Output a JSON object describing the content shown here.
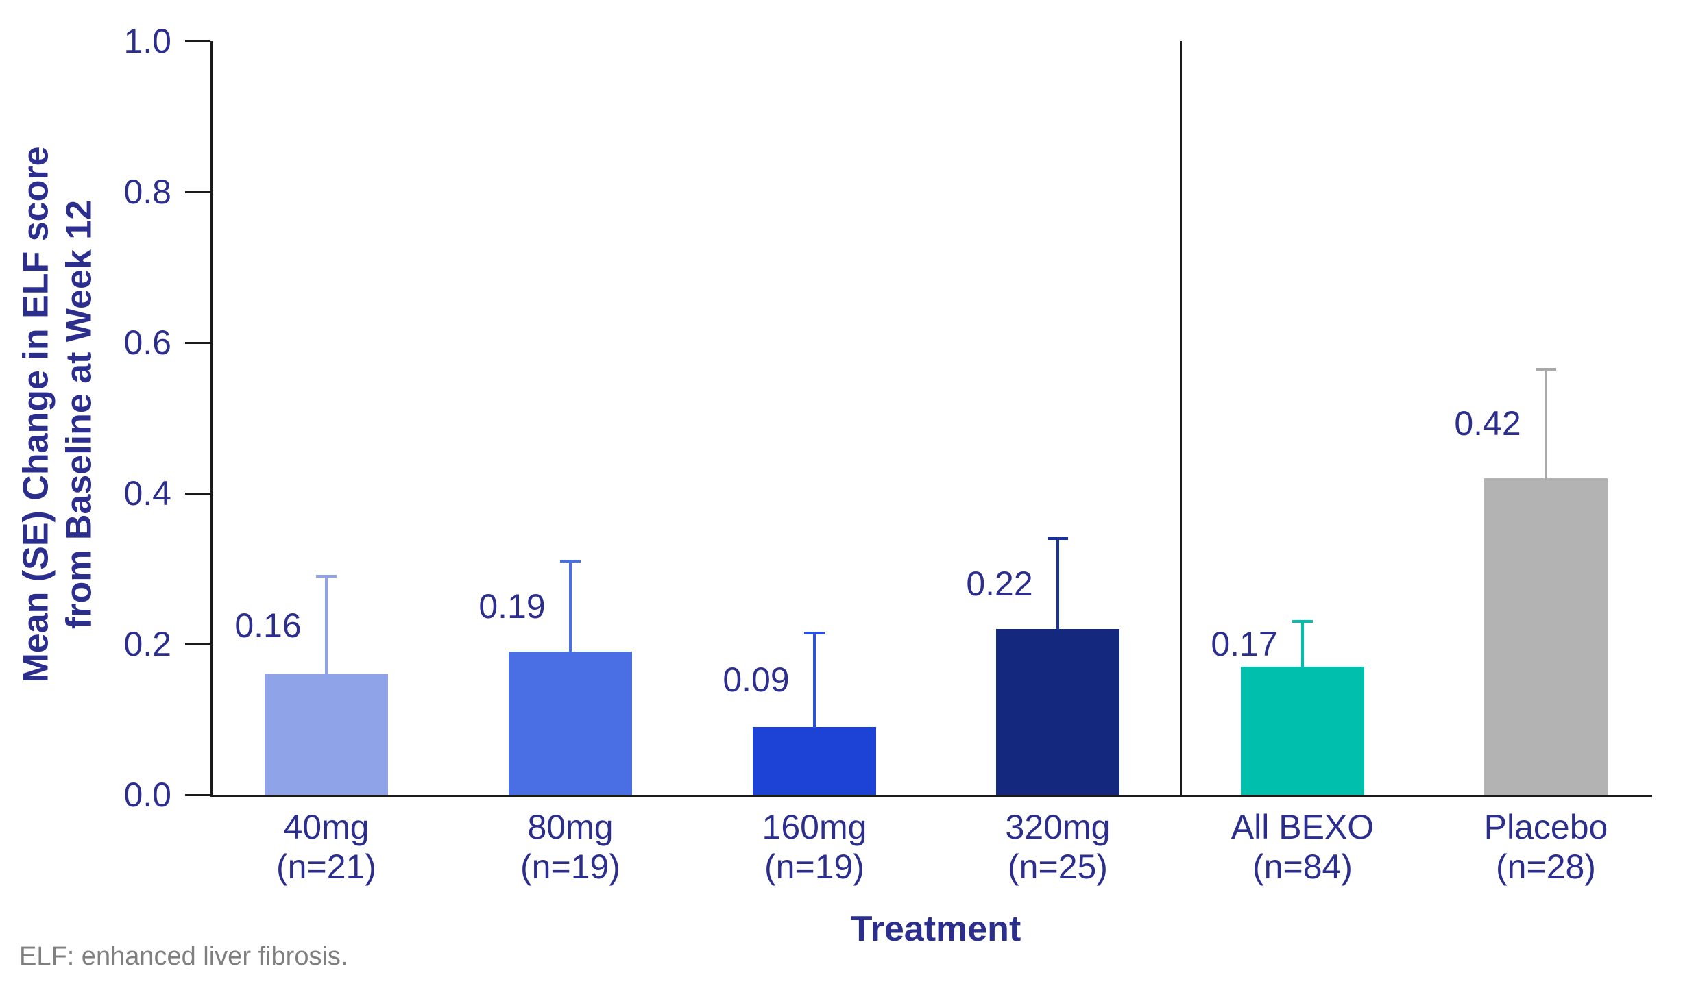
{
  "footnote": "ELF: enhanced liver fibrosis.",
  "chart_data": {
    "type": "bar",
    "title": "",
    "ylabel_line1": "Mean (SE) Change in ELF score",
    "ylabel_line2": "from Baseline at Week 12",
    "xlabel": "Treatment",
    "ylim": [
      0.0,
      1.0
    ],
    "yticks": [
      0.0,
      0.2,
      0.4,
      0.6,
      0.8,
      1.0
    ],
    "grid": false,
    "legend": "none",
    "categories": [
      "40mg",
      "80mg",
      "160mg",
      "320mg",
      "All BEXO",
      "Placebo"
    ],
    "subcategories": [
      "(n=21)",
      "(n=19)",
      "(n=19)",
      "(n=25)",
      "(n=84)",
      "(n=28)"
    ],
    "values": [
      0.16,
      0.19,
      0.09,
      0.22,
      0.17,
      0.42
    ],
    "error_top": [
      0.29,
      0.31,
      0.215,
      0.34,
      0.23,
      0.565
    ],
    "bar_colors": [
      "#8FA3E8",
      "#4A6FE4",
      "#1C43D6",
      "#14287E",
      "#00BFAC",
      "#B3B3B3"
    ],
    "error_colors": [
      "#8FA3E8",
      "#4A6FE4",
      "#2C50DA",
      "#1B2F9E",
      "#00BFAC",
      "#A9A9A9"
    ],
    "separator_after_index": 3,
    "text_color": "#2B2E8C",
    "axis_color": "#1A1A1A",
    "footnote_color": "#7F7F7F"
  }
}
